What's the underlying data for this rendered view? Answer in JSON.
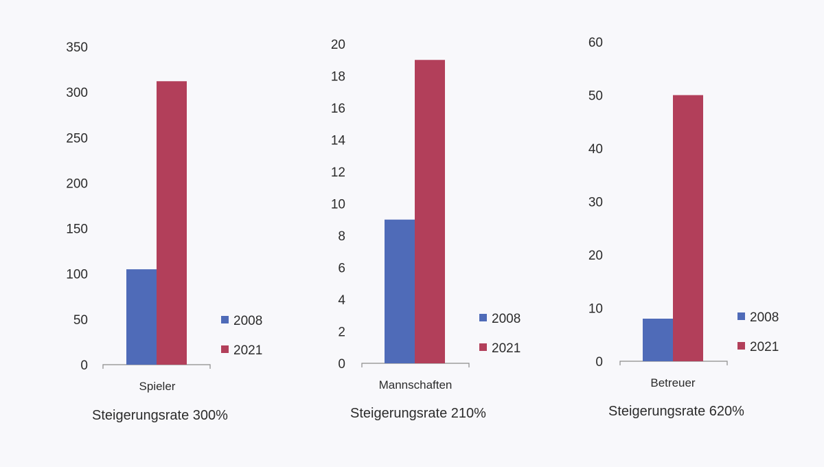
{
  "chart_data": [
    {
      "type": "bar",
      "categories": [
        "Spieler"
      ],
      "series": [
        {
          "name": "2008",
          "values": [
            105
          ]
        },
        {
          "name": "2021",
          "values": [
            312
          ]
        }
      ],
      "ylim": [
        0,
        350
      ],
      "yticks": [
        0,
        50,
        100,
        150,
        200,
        250,
        300,
        350
      ],
      "caption": "Steigerungsrate 300%",
      "legend_position": "right",
      "grid": false
    },
    {
      "type": "bar",
      "categories": [
        "Mannschaften"
      ],
      "series": [
        {
          "name": "2008",
          "values": [
            9
          ]
        },
        {
          "name": "2021",
          "values": [
            19
          ]
        }
      ],
      "ylim": [
        0,
        20
      ],
      "yticks": [
        0,
        2,
        4,
        6,
        8,
        10,
        12,
        14,
        16,
        18,
        20
      ],
      "caption": "Steigerungsrate 210%",
      "legend_position": "right",
      "grid": false
    },
    {
      "type": "bar",
      "categories": [
        "Betreuer"
      ],
      "series": [
        {
          "name": "2008",
          "values": [
            8
          ]
        },
        {
          "name": "2021",
          "values": [
            50
          ]
        }
      ],
      "ylim": [
        0,
        60
      ],
      "yticks": [
        0,
        10,
        20,
        30,
        40,
        50,
        60
      ],
      "caption": "Steigerungsrate 620%",
      "legend_position": "right",
      "grid": false
    }
  ],
  "colors": {
    "2008": "#4f6bb8",
    "2021": "#b23f5a"
  }
}
